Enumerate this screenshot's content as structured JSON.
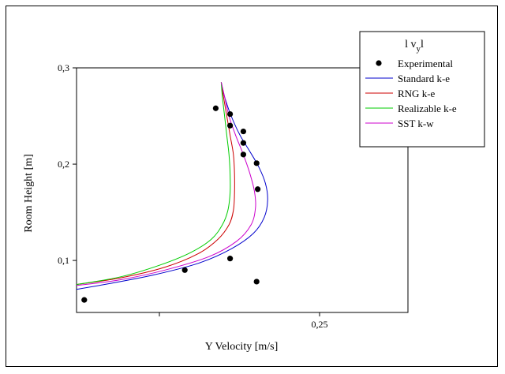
{
  "chart_data": {
    "type": "line",
    "xlabel": "Y Velocity [m/s]",
    "ylabel": "Room Height [m]",
    "xlim": [
      0.03,
      0.33
    ],
    "ylim": [
      0.046,
      0.3
    ],
    "xticks": [
      0.105,
      0.25
    ],
    "xtick_labels": [
      "",
      "0,25"
    ],
    "yticks": [
      0.1,
      0.2,
      0.3
    ],
    "ytick_labels": [
      "0,1",
      "0,2",
      "0,3"
    ],
    "legend": {
      "title": "l v",
      "title_sub": "y",
      "title_tail": "l",
      "placement": "top-right"
    },
    "experimental": {
      "name": "Experimental",
      "color": "#000000",
      "points": [
        [
          0.037,
          0.059
        ],
        [
          0.128,
          0.09
        ],
        [
          0.169,
          0.102
        ],
        [
          0.193,
          0.078
        ],
        [
          0.156,
          0.258
        ],
        [
          0.169,
          0.252
        ],
        [
          0.169,
          0.24
        ],
        [
          0.181,
          0.234
        ],
        [
          0.181,
          0.222
        ],
        [
          0.181,
          0.21
        ],
        [
          0.193,
          0.201
        ],
        [
          0.194,
          0.174
        ]
      ]
    },
    "series": [
      {
        "name": "Standard k-e",
        "color": "#0000cc",
        "points": [
          [
            0.03,
            0.07
          ],
          [
            0.06,
            0.076
          ],
          [
            0.1,
            0.085
          ],
          [
            0.14,
            0.097
          ],
          [
            0.17,
            0.112
          ],
          [
            0.19,
            0.128
          ],
          [
            0.2,
            0.145
          ],
          [
            0.203,
            0.163
          ],
          [
            0.201,
            0.18
          ],
          [
            0.195,
            0.197
          ],
          [
            0.187,
            0.213
          ],
          [
            0.178,
            0.23
          ],
          [
            0.17,
            0.25
          ],
          [
            0.164,
            0.27
          ],
          [
            0.161,
            0.285
          ]
        ]
      },
      {
        "name": "RNG k-e",
        "color": "#cc0000",
        "points": [
          [
            0.03,
            0.075
          ],
          [
            0.07,
            0.082
          ],
          [
            0.11,
            0.093
          ],
          [
            0.14,
            0.107
          ],
          [
            0.158,
            0.122
          ],
          [
            0.168,
            0.137
          ],
          [
            0.172,
            0.152
          ],
          [
            0.173,
            0.17
          ],
          [
            0.173,
            0.19
          ],
          [
            0.172,
            0.21
          ],
          [
            0.169,
            0.23
          ],
          [
            0.166,
            0.25
          ],
          [
            0.163,
            0.27
          ],
          [
            0.161,
            0.285
          ]
        ]
      },
      {
        "name": "Realizable k-e",
        "color": "#00cc00",
        "points": [
          [
            0.03,
            0.075
          ],
          [
            0.07,
            0.083
          ],
          [
            0.105,
            0.095
          ],
          [
            0.133,
            0.108
          ],
          [
            0.152,
            0.122
          ],
          [
            0.162,
            0.137
          ],
          [
            0.167,
            0.152
          ],
          [
            0.169,
            0.17
          ],
          [
            0.169,
            0.19
          ],
          [
            0.168,
            0.21
          ],
          [
            0.166,
            0.23
          ],
          [
            0.164,
            0.25
          ],
          [
            0.162,
            0.27
          ],
          [
            0.161,
            0.285
          ]
        ]
      },
      {
        "name": "SST k-w",
        "color": "#cc00cc",
        "points": [
          [
            0.03,
            0.074
          ],
          [
            0.07,
            0.08
          ],
          [
            0.11,
            0.09
          ],
          [
            0.15,
            0.104
          ],
          [
            0.175,
            0.12
          ],
          [
            0.188,
            0.137
          ],
          [
            0.192,
            0.155
          ],
          [
            0.191,
            0.172
          ],
          [
            0.187,
            0.19
          ],
          [
            0.181,
            0.21
          ],
          [
            0.174,
            0.23
          ],
          [
            0.168,
            0.25
          ],
          [
            0.164,
            0.27
          ],
          [
            0.161,
            0.285
          ]
        ]
      }
    ]
  }
}
